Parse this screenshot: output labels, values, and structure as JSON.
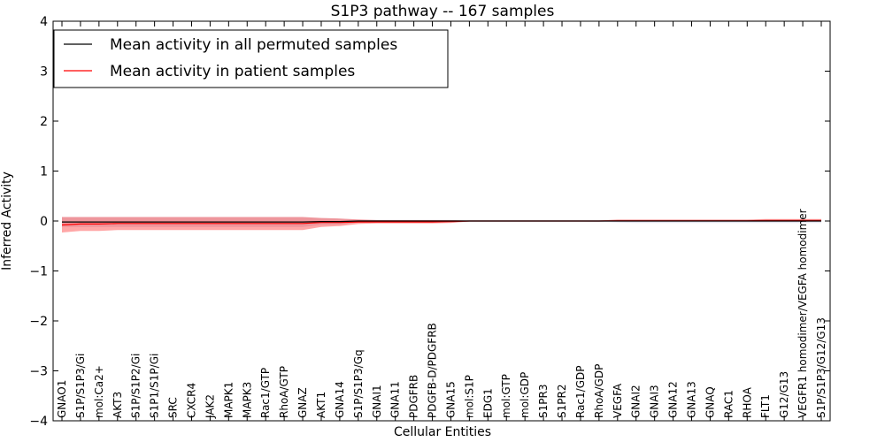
{
  "chart_data": {
    "type": "line",
    "title": "S1P3 pathway -- 167 samples",
    "xlabel": "Cellular Entities",
    "ylabel": "Inferred Activity",
    "ylim": [
      -4,
      4
    ],
    "yticks": [
      4,
      3,
      2,
      1,
      0,
      -1,
      -2,
      -3,
      -4
    ],
    "ytick_labels": [
      "4",
      "3",
      "2",
      "1",
      "0",
      "−1",
      "−2",
      "−3",
      "−4"
    ],
    "legend_position": "top-left",
    "categories": [
      "GNAO1",
      "S1P/S1P3/Gi",
      "mol:Ca2+",
      "AKT3",
      "S1P/S1P2/Gi",
      "S1P1/S1P/Gi",
      "SRC",
      "CXCR4",
      "JAK2",
      "MAPK1",
      "MAPK3",
      "Rac1/GTP",
      "RhoA/GTP",
      "GNAZ",
      "AKT1",
      "GNA14",
      "S1P/S1P3/Gq",
      "GNAI1",
      "GNA11",
      "PDGFRB",
      "PDGFB-D/PDGFRB",
      "GNA15",
      "mol:S1P",
      "EDG1",
      "mol:GTP",
      "mol:GDP",
      "S1PR3",
      "S1PR2",
      "Rac1/GDP",
      "RhoA/GDP",
      "VEGFA",
      "GNAI2",
      "GNAI3",
      "GNA12",
      "GNA13",
      "GNAQ",
      "RAC1",
      "RHOA",
      "FLT1",
      "G12/G13",
      "VEGFR1 homodimer/VEGFA homodimer",
      "S1P/S1P3/G12/G13"
    ],
    "series": [
      {
        "name": "Mean activity in all permuted samples",
        "color": "#000000",
        "values": [
          -0.02,
          -0.02,
          -0.02,
          -0.02,
          -0.02,
          -0.02,
          -0.02,
          -0.02,
          -0.02,
          -0.02,
          -0.02,
          -0.02,
          -0.02,
          -0.02,
          -0.01,
          -0.01,
          0,
          0,
          0,
          0,
          0,
          0,
          0,
          0,
          0,
          0,
          0,
          0,
          0,
          0,
          0,
          0,
          0,
          0,
          0,
          0,
          0,
          0,
          0,
          0,
          0,
          0
        ],
        "band_upper": [
          0.08,
          0.08,
          0.08,
          0.08,
          0.08,
          0.08,
          0.08,
          0.08,
          0.08,
          0.08,
          0.08,
          0.08,
          0.08,
          0.08,
          0.06,
          0.05,
          0.03,
          0.02,
          0.02,
          0.02,
          0.02,
          0.02,
          0.01,
          0.01,
          0.01,
          0.01,
          0.01,
          0.01,
          0.01,
          0.01,
          0.01,
          0.01,
          0.01,
          0.01,
          0.01,
          0.01,
          0.01,
          0.01,
          0.01,
          0.01,
          0.01,
          0.01
        ],
        "band_lower": [
          -0.12,
          -0.12,
          -0.12,
          -0.12,
          -0.12,
          -0.12,
          -0.12,
          -0.12,
          -0.12,
          -0.12,
          -0.12,
          -0.12,
          -0.12,
          -0.12,
          -0.08,
          -0.07,
          -0.03,
          -0.02,
          -0.02,
          -0.02,
          -0.02,
          -0.02,
          -0.01,
          -0.01,
          -0.01,
          -0.01,
          -0.01,
          -0.01,
          -0.01,
          -0.02,
          -0.03,
          -0.04,
          -0.04,
          -0.04,
          -0.04,
          -0.04,
          -0.04,
          -0.04,
          -0.04,
          -0.04,
          -0.04,
          -0.04
        ]
      },
      {
        "name": "Mean activity in patient samples",
        "color": "#ff0000",
        "values": [
          -0.08,
          -0.06,
          -0.06,
          -0.05,
          -0.05,
          -0.05,
          -0.05,
          -0.05,
          -0.05,
          -0.05,
          -0.05,
          -0.05,
          -0.05,
          -0.05,
          -0.03,
          -0.03,
          -0.02,
          -0.02,
          -0.02,
          -0.02,
          -0.02,
          -0.01,
          0,
          0,
          0,
          0,
          0,
          0,
          0,
          0,
          0.005,
          0.005,
          0.005,
          0.005,
          0.005,
          0.005,
          0.005,
          0.005,
          0.01,
          0.01,
          0.01,
          0.01
        ],
        "band_upper": [
          0.08,
          0.08,
          0.08,
          0.08,
          0.08,
          0.08,
          0.08,
          0.08,
          0.08,
          0.08,
          0.08,
          0.08,
          0.08,
          0.08,
          0.06,
          0.05,
          0.03,
          0.02,
          0.02,
          0.02,
          0.02,
          0.02,
          0.01,
          0.01,
          0.01,
          0.01,
          0.01,
          0.01,
          0.01,
          0.01,
          0.03,
          0.03,
          0.03,
          0.03,
          0.03,
          0.03,
          0.03,
          0.03,
          0.04,
          0.04,
          0.04,
          0.04
        ],
        "band_lower": [
          -0.23,
          -0.2,
          -0.2,
          -0.18,
          -0.18,
          -0.18,
          -0.18,
          -0.18,
          -0.18,
          -0.18,
          -0.18,
          -0.18,
          -0.18,
          -0.18,
          -0.12,
          -0.1,
          -0.06,
          -0.05,
          -0.05,
          -0.05,
          -0.05,
          -0.04,
          -0.01,
          -0.01,
          -0.01,
          -0.01,
          -0.01,
          -0.01,
          -0.01,
          -0.01,
          -0.01,
          -0.01,
          -0.01,
          -0.01,
          -0.01,
          -0.01,
          -0.01,
          -0.01,
          -0.01,
          -0.01,
          -0.01,
          -0.01
        ]
      }
    ]
  }
}
